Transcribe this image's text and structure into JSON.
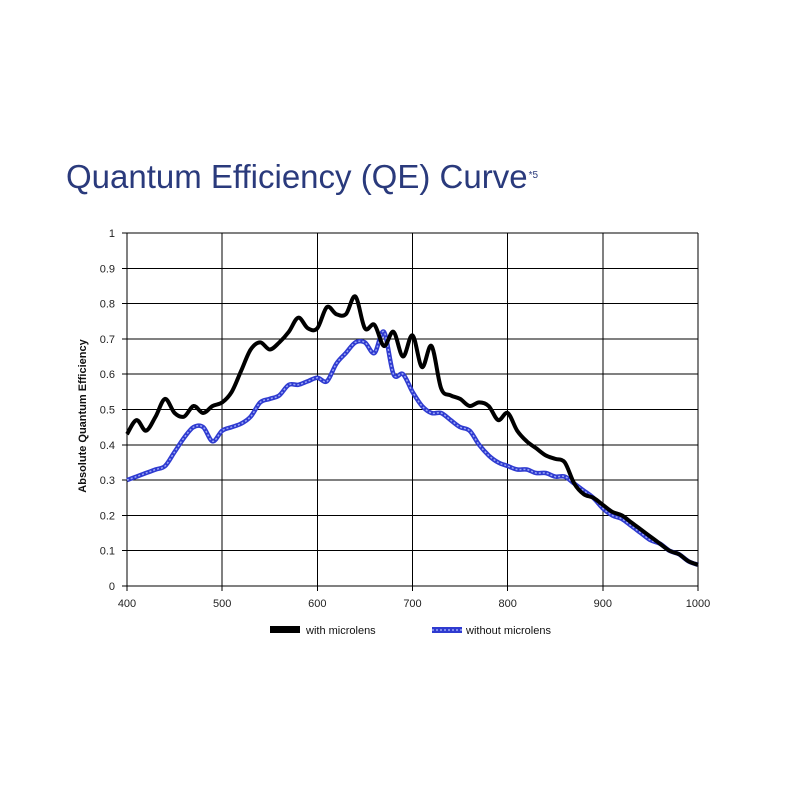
{
  "title_main": "Quantum Efficiency (QE) Curve",
  "title_sup": "*5",
  "colors": {
    "title": "#2a3a7c",
    "with": "#000000",
    "without": "#2f3bd0",
    "without_dash": "#9aa6f5",
    "grid": "#000000"
  },
  "chart_data": {
    "type": "line",
    "title": "Quantum Efficiency (QE) Curve*5",
    "xlabel": "",
    "ylabel": "Absolute Quantum Efficiency",
    "xlim": [
      400,
      1000
    ],
    "ylim": [
      0,
      1
    ],
    "x_ticks": [
      400,
      500,
      600,
      700,
      800,
      900,
      1000
    ],
    "y_ticks": [
      0,
      0.1,
      0.2,
      0.3,
      0.4,
      0.5,
      0.6,
      0.7,
      0.8,
      0.9,
      1
    ],
    "y_tick_labels": [
      "0",
      "0.1",
      "0.2",
      "0.3",
      "0.4",
      "0.5",
      "0.6",
      "0.7",
      "0.8",
      "0.9",
      "1"
    ],
    "grid": true,
    "legend_position": "bottom",
    "series": [
      {
        "name": "with microlens",
        "x": [
          400,
          410,
          420,
          430,
          440,
          450,
          460,
          470,
          480,
          490,
          500,
          510,
          520,
          530,
          540,
          550,
          560,
          570,
          580,
          590,
          600,
          610,
          620,
          630,
          640,
          650,
          660,
          670,
          680,
          690,
          700,
          710,
          720,
          730,
          740,
          750,
          760,
          770,
          780,
          790,
          800,
          810,
          820,
          830,
          840,
          850,
          860,
          870,
          880,
          890,
          900,
          910,
          920,
          930,
          940,
          950,
          960,
          970,
          980,
          990,
          1000
        ],
        "values": [
          0.43,
          0.47,
          0.44,
          0.48,
          0.53,
          0.49,
          0.48,
          0.51,
          0.49,
          0.51,
          0.52,
          0.55,
          0.61,
          0.67,
          0.69,
          0.67,
          0.69,
          0.72,
          0.76,
          0.73,
          0.73,
          0.79,
          0.77,
          0.77,
          0.82,
          0.73,
          0.74,
          0.68,
          0.72,
          0.65,
          0.71,
          0.62,
          0.68,
          0.56,
          0.54,
          0.53,
          0.51,
          0.52,
          0.51,
          0.47,
          0.49,
          0.44,
          0.41,
          0.39,
          0.37,
          0.36,
          0.35,
          0.29,
          0.26,
          0.25,
          0.23,
          0.21,
          0.2,
          0.18,
          0.16,
          0.14,
          0.12,
          0.1,
          0.09,
          0.07,
          0.06
        ]
      },
      {
        "name": "without microlens",
        "x": [
          400,
          410,
          420,
          430,
          440,
          450,
          460,
          470,
          480,
          490,
          500,
          510,
          520,
          530,
          540,
          550,
          560,
          570,
          580,
          590,
          600,
          610,
          620,
          630,
          640,
          650,
          660,
          670,
          680,
          690,
          700,
          710,
          720,
          730,
          740,
          750,
          760,
          770,
          780,
          790,
          800,
          810,
          820,
          830,
          840,
          850,
          860,
          870,
          880,
          890,
          900,
          910,
          920,
          930,
          940,
          950,
          960,
          970,
          980,
          990,
          1000
        ],
        "values": [
          0.3,
          0.31,
          0.32,
          0.33,
          0.34,
          0.38,
          0.42,
          0.45,
          0.45,
          0.41,
          0.44,
          0.45,
          0.46,
          0.48,
          0.52,
          0.53,
          0.54,
          0.57,
          0.57,
          0.58,
          0.59,
          0.58,
          0.63,
          0.66,
          0.69,
          0.69,
          0.66,
          0.72,
          0.6,
          0.6,
          0.55,
          0.51,
          0.49,
          0.49,
          0.47,
          0.45,
          0.44,
          0.4,
          0.37,
          0.35,
          0.34,
          0.33,
          0.33,
          0.32,
          0.32,
          0.31,
          0.31,
          0.29,
          0.27,
          0.25,
          0.22,
          0.2,
          0.19,
          0.17,
          0.15,
          0.13,
          0.12,
          0.1,
          0.09,
          0.07,
          0.06
        ]
      }
    ]
  }
}
